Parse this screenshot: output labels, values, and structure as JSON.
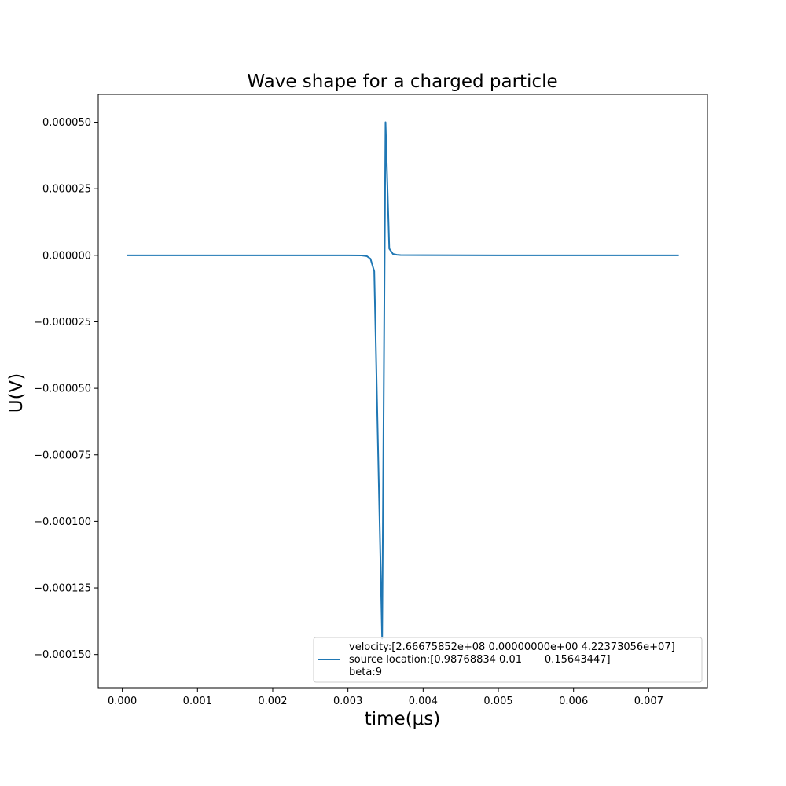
{
  "chart_data": {
    "type": "line",
    "title": "Wave shape for a charged particle",
    "xlabel": "time(μs)",
    "ylabel": "U(V)",
    "xlim": [
      -0.00032,
      0.00778
    ],
    "ylim": [
      -0.0001625,
      6.05e-05
    ],
    "x_ticks": [
      {
        "value": 0.0,
        "label": "0.000"
      },
      {
        "value": 0.001,
        "label": "0.001"
      },
      {
        "value": 0.002,
        "label": "0.002"
      },
      {
        "value": 0.003,
        "label": "0.003"
      },
      {
        "value": 0.004,
        "label": "0.004"
      },
      {
        "value": 0.005,
        "label": "0.005"
      },
      {
        "value": 0.006,
        "label": "0.006"
      },
      {
        "value": 0.007,
        "label": "0.007"
      }
    ],
    "y_ticks": [
      {
        "value": 5e-05,
        "label": "0.000050"
      },
      {
        "value": 2.5e-05,
        "label": "0.000025"
      },
      {
        "value": 0.0,
        "label": "0.000000"
      },
      {
        "value": -2.5e-05,
        "label": "−0.000025"
      },
      {
        "value": -5e-05,
        "label": "−0.000050"
      },
      {
        "value": -7.5e-05,
        "label": "−0.000075"
      },
      {
        "value": -0.0001,
        "label": "−0.000100"
      },
      {
        "value": -0.000125,
        "label": "−0.000125"
      },
      {
        "value": -0.00015,
        "label": "−0.000150"
      }
    ],
    "grid": false,
    "legend_position": "lower-right",
    "series": [
      {
        "color": "#1f77b4",
        "legend_lines": [
          "velocity:[2.66675852e+08 0.00000000e+00 4.22373056e+07]",
          "source location:[0.98768834 0.01       0.15643447]",
          "beta:9"
        ],
        "x": [
          6e-05,
          0.001,
          0.002,
          0.003,
          0.00318,
          0.00325,
          0.0033,
          0.00335,
          0.003455,
          0.0035,
          0.00355,
          0.0036,
          0.00365,
          0.0037,
          0.004,
          0.005,
          0.006,
          0.007,
          0.0074
        ],
        "y": [
          0.0,
          0.0,
          0.0,
          0.0,
          -5e-08,
          -3e-07,
          -1.3e-06,
          -6e-06,
          -0.000144,
          5e-05,
          2.5e-06,
          5e-07,
          2e-07,
          1e-07,
          5e-08,
          0.0,
          0.0,
          0.0,
          0.0
        ]
      }
    ]
  }
}
